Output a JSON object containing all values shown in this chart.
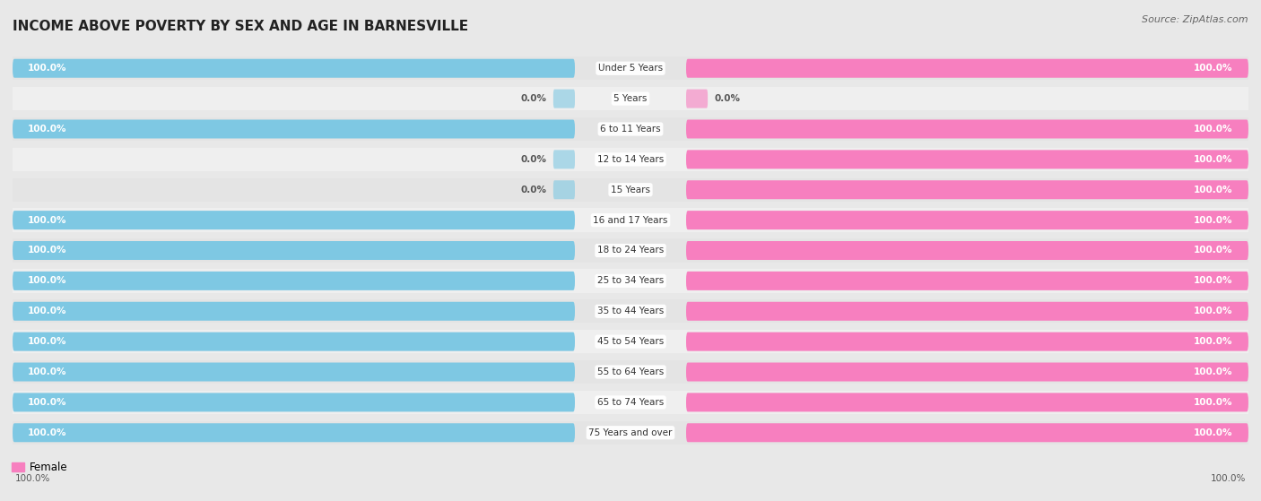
{
  "title": "INCOME ABOVE POVERTY BY SEX AND AGE IN BARNESVILLE",
  "source": "Source: ZipAtlas.com",
  "categories": [
    "Under 5 Years",
    "5 Years",
    "6 to 11 Years",
    "12 to 14 Years",
    "15 Years",
    "16 and 17 Years",
    "18 to 24 Years",
    "25 to 34 Years",
    "35 to 44 Years",
    "45 to 54 Years",
    "55 to 64 Years",
    "65 to 74 Years",
    "75 Years and over"
  ],
  "male_values": [
    100.0,
    0.0,
    100.0,
    0.0,
    0.0,
    100.0,
    100.0,
    100.0,
    100.0,
    100.0,
    100.0,
    100.0,
    100.0
  ],
  "female_values": [
    100.0,
    0.0,
    100.0,
    100.0,
    100.0,
    100.0,
    100.0,
    100.0,
    100.0,
    100.0,
    100.0,
    100.0,
    100.0
  ],
  "male_color": "#7ec8e3",
  "female_color": "#f77fbf",
  "male_color_dark": "#5ab4d4",
  "female_color_dark": "#e85fa8",
  "bar_height": 0.62,
  "xlim": 100,
  "background_color": "#e8e8e8",
  "row_bg_even": "#efefef",
  "row_bg_odd": "#e4e4e4",
  "title_fontsize": 11,
  "source_fontsize": 8,
  "category_fontsize": 7.5,
  "value_fontsize": 7.5,
  "legend_fontsize": 8.5
}
